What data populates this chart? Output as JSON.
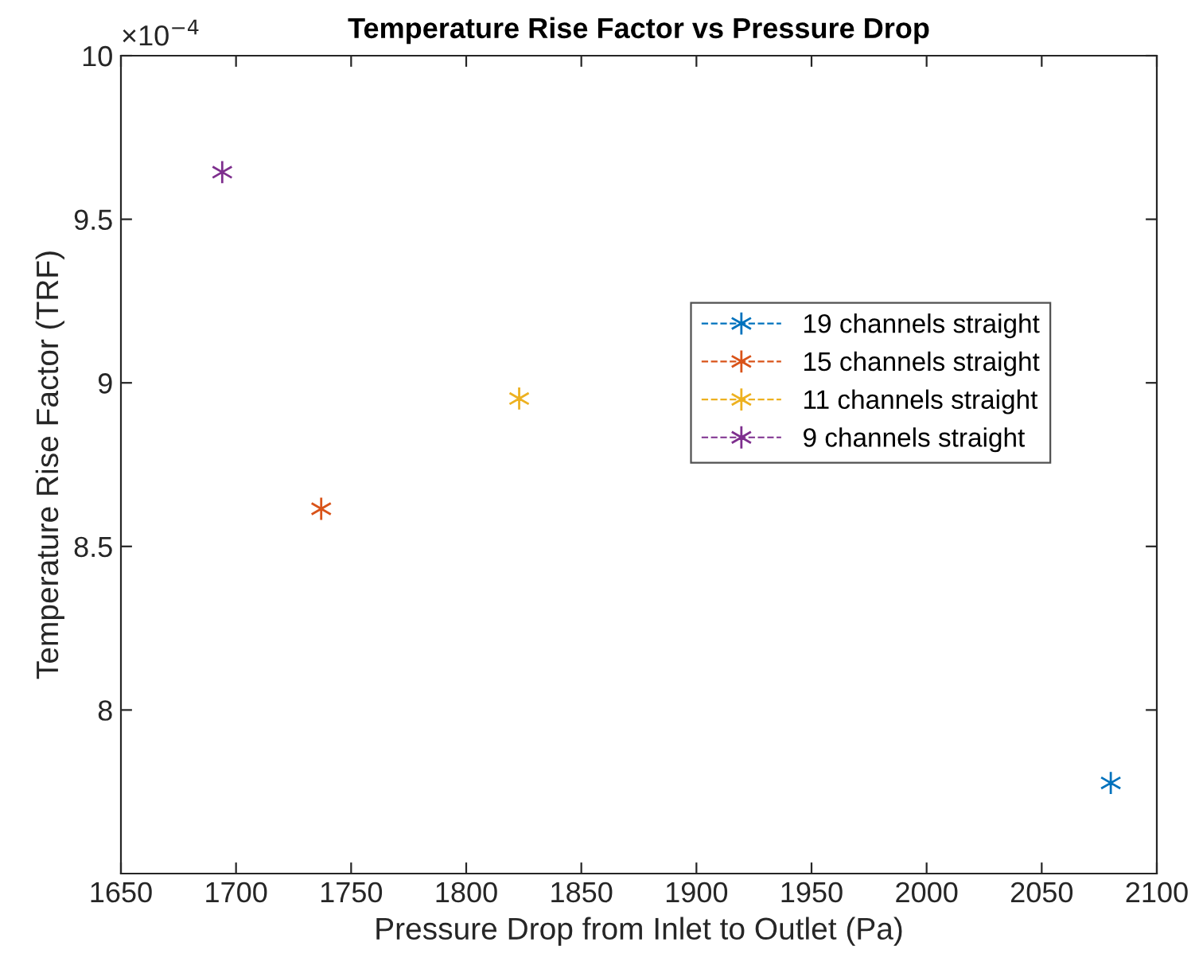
{
  "chart_data": {
    "type": "line",
    "title": "Temperature Rise Factor vs Pressure Drop",
    "xlabel": "Pressure Drop from Inlet to Outlet (Pa)",
    "ylabel": "Temperature Rise Factor (TRF)",
    "annotations": [
      "×10$^{−4}$"
    ],
    "series": [
      {
        "name": "19 channels straight",
        "color": "#0072bd",
        "x": [
          2080
        ],
        "values": [
          7.777
        ]
      },
      {
        "name": "15 channels straight",
        "color": "#d95319",
        "x": [
          1737
        ],
        "values": [
          8.615
        ]
      },
      {
        "name": "11 channels straight",
        "color": "#edb120",
        "x": [
          1823
        ],
        "values": [
          8.952
        ]
      },
      {
        "name": "9 channels straight",
        "color": "#7e2f8e",
        "x": [
          1694
        ],
        "values": [
          9.644
        ]
      }
    ],
    "xlim": [
      1650,
      2100
    ],
    "xticks": [
      1650,
      1700,
      1750,
      1800,
      1850,
      1900,
      1950,
      2000,
      2050,
      2100
    ],
    "ylim": [
      7.5,
      10
    ],
    "yticks": [
      8,
      8.5,
      9,
      9.5,
      10
    ],
    "marker": "cross",
    "line_style": "dashed",
    "legend": "right",
    "grid": false
  }
}
